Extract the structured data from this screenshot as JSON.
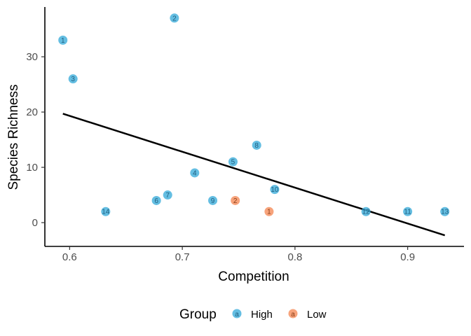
{
  "chart_data": {
    "type": "scatter",
    "xlabel": "Competition",
    "ylabel": "Species Richness",
    "xlim": [
      0.578,
      0.95
    ],
    "ylim": [
      -4.3,
      39
    ],
    "xticks": [
      0.6,
      0.7,
      0.8,
      0.9
    ],
    "yticks": [
      0,
      10,
      20,
      30
    ],
    "xtick_labels": [
      "0.6",
      "0.7",
      "0.8",
      "0.9"
    ],
    "ytick_labels": [
      "0",
      "10",
      "20",
      "30"
    ],
    "grid": false,
    "legend": {
      "title": "Group",
      "position": "bottom",
      "key_glyph_text": "a",
      "entries": [
        {
          "label": "High",
          "color": "#3DAEDB"
        },
        {
          "label": "Low",
          "color": "#F58C5A"
        }
      ]
    },
    "series": [
      {
        "name": "High",
        "color": "#3DAEDB",
        "points": [
          {
            "label": "1",
            "x": 0.594,
            "y": 33
          },
          {
            "label": "2",
            "x": 0.693,
            "y": 37
          },
          {
            "label": "3",
            "x": 0.603,
            "y": 26
          },
          {
            "label": "4",
            "x": 0.711,
            "y": 9
          },
          {
            "label": "5",
            "x": 0.745,
            "y": 11
          },
          {
            "label": "6",
            "x": 0.677,
            "y": 4
          },
          {
            "label": "7",
            "x": 0.687,
            "y": 5
          },
          {
            "label": "8",
            "x": 0.766,
            "y": 14
          },
          {
            "label": "9",
            "x": 0.727,
            "y": 4
          },
          {
            "label": "10",
            "x": 0.782,
            "y": 6
          },
          {
            "label": "11",
            "x": 0.9,
            "y": 2
          },
          {
            "label": "12",
            "x": 0.863,
            "y": 2
          },
          {
            "label": "13",
            "x": 0.933,
            "y": 2
          },
          {
            "label": "14",
            "x": 0.632,
            "y": 2
          }
        ]
      },
      {
        "name": "Low",
        "color": "#F58C5A",
        "points": [
          {
            "label": "1",
            "x": 0.777,
            "y": 2
          },
          {
            "label": "2",
            "x": 0.747,
            "y": 4
          }
        ]
      }
    ],
    "fit_line": {
      "x": [
        0.594,
        0.933
      ],
      "y": [
        19.7,
        -2.3
      ],
      "color": "#000000"
    }
  }
}
